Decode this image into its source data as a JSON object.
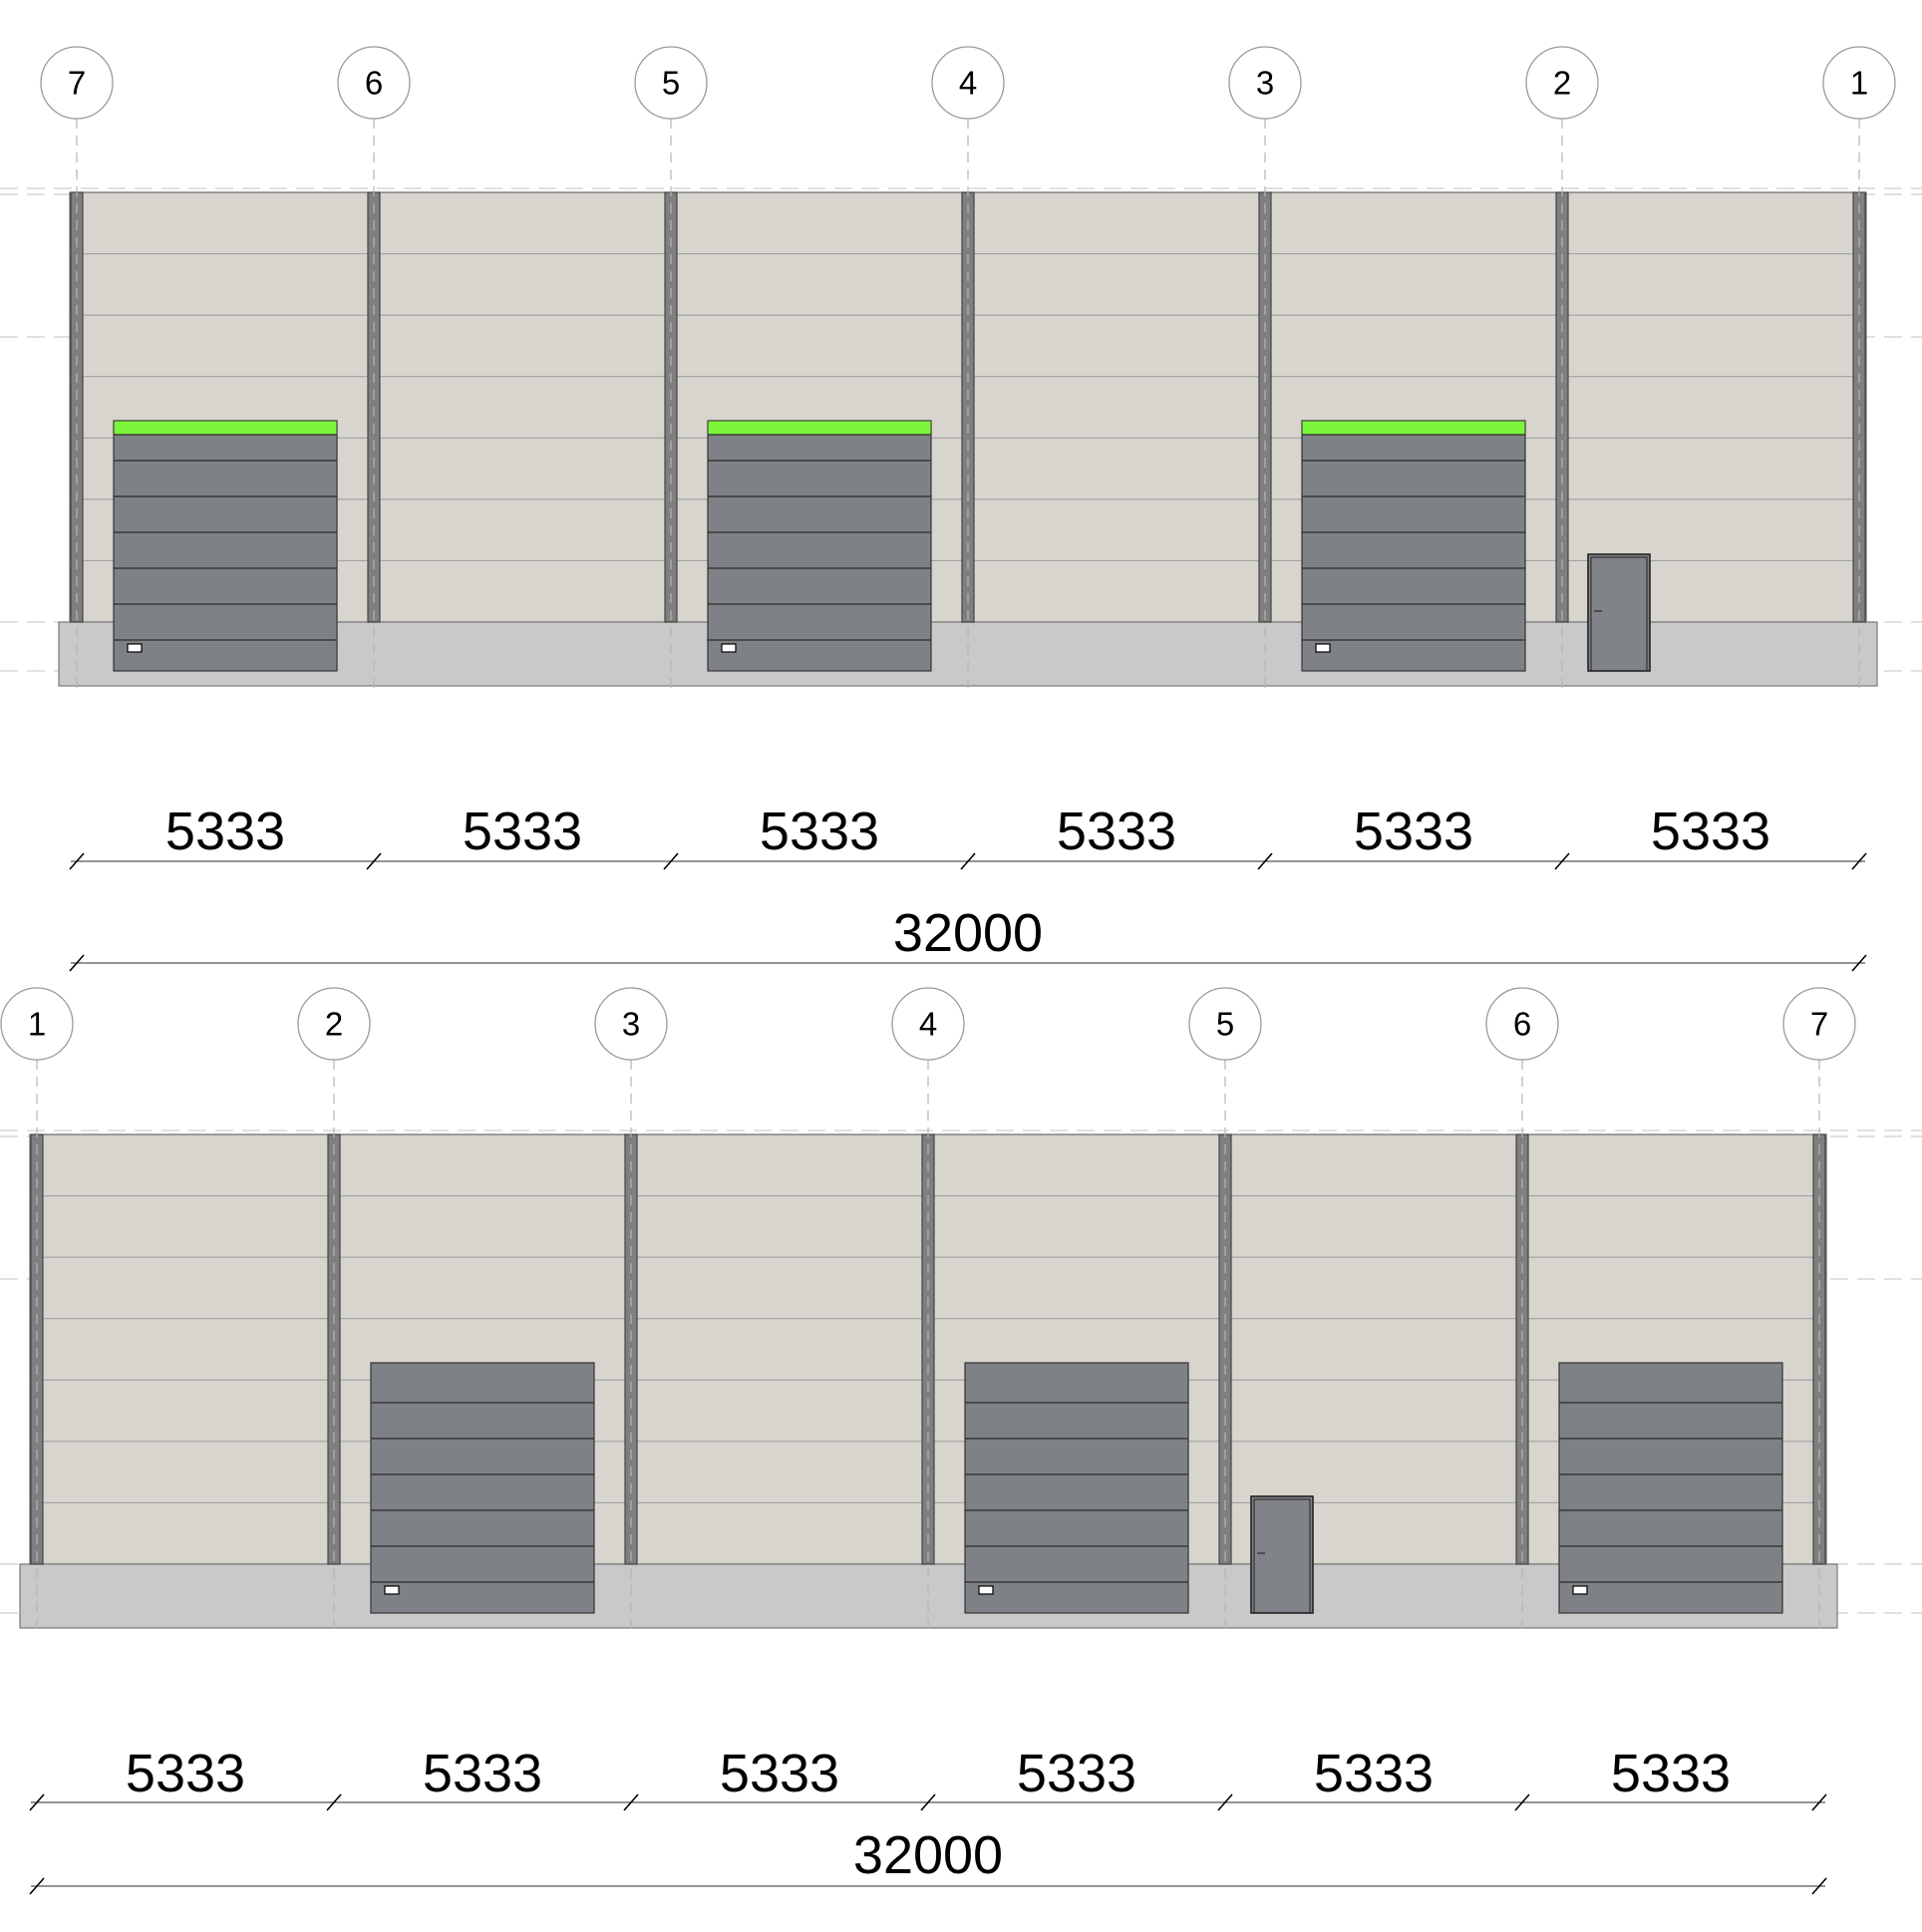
{
  "views": [
    {
      "axes": [
        "7",
        "6",
        "5",
        "4",
        "3",
        "2",
        "1"
      ],
      "bay_dimensions": [
        "5333",
        "5333",
        "5333",
        "5333",
        "5333",
        "5333"
      ],
      "overall_dimension": "32000",
      "gates": [
        {
          "bay": 0,
          "top_band": true
        },
        {
          "bay": 2,
          "top_band": true
        },
        {
          "bay": 4,
          "top_band": true
        }
      ],
      "door": {
        "bay": 5
      }
    },
    {
      "axes": [
        "1",
        "2",
        "3",
        "4",
        "5",
        "6",
        "7"
      ],
      "bay_dimensions": [
        "5333",
        "5333",
        "5333",
        "5333",
        "5333",
        "5333"
      ],
      "overall_dimension": "32000",
      "gates": [
        {
          "bay": 1,
          "top_band": false
        },
        {
          "bay": 3,
          "top_band": false
        },
        {
          "bay": 5,
          "top_band": false
        }
      ],
      "door": {
        "bay": 4
      }
    }
  ],
  "colors": {
    "wall": "#d8d5cf",
    "plinth": "#c9c9c9",
    "gate": "#7e8286",
    "gate_top_band": "#7cf53a",
    "column": "#7f7f7f"
  }
}
